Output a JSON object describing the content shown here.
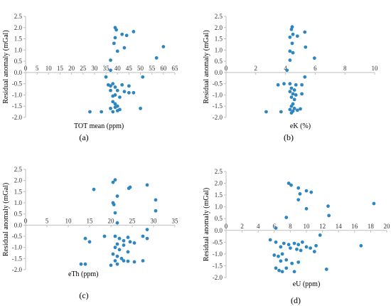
{
  "chart_data": [
    {
      "type": "scatter",
      "panel_label": "(a)",
      "xlabel": "TOT mean (ppm)",
      "ylabel": "Residual anomaly (mGal)",
      "xlim": [
        0,
        65
      ],
      "ylim": [
        -2.0,
        2.5
      ],
      "xticks": [
        0,
        5,
        10,
        15,
        20,
        25,
        30,
        35,
        40,
        45,
        50,
        55,
        60,
        65
      ],
      "yticks": [
        -2.0,
        -1.5,
        -1.0,
        -0.5,
        0.0,
        0.5,
        1.0,
        1.5,
        2.0,
        2.5
      ],
      "point_color": "#2e86c1",
      "points": [
        [
          39,
          2.0
        ],
        [
          39.5,
          1.9
        ],
        [
          47,
          1.82
        ],
        [
          42,
          1.7
        ],
        [
          44,
          1.65
        ],
        [
          39,
          1.55
        ],
        [
          38.5,
          1.3
        ],
        [
          43,
          1.1
        ],
        [
          60,
          1.15
        ],
        [
          40,
          0.95
        ],
        [
          57,
          0.65
        ],
        [
          37,
          0.55
        ],
        [
          37,
          0.1
        ],
        [
          35,
          -0.2
        ],
        [
          51,
          -0.2
        ],
        [
          36,
          -0.55
        ],
        [
          37,
          -0.6
        ],
        [
          38,
          -0.5
        ],
        [
          39,
          -0.65
        ],
        [
          42,
          -0.55
        ],
        [
          45,
          -0.6
        ],
        [
          40,
          -0.8
        ],
        [
          37,
          -0.8
        ],
        [
          43,
          -0.85
        ],
        [
          45,
          -0.9
        ],
        [
          39,
          -1.0
        ],
        [
          38,
          -1.05
        ],
        [
          41,
          -1.1
        ],
        [
          47,
          -0.9
        ],
        [
          38,
          -1.3
        ],
        [
          39,
          -1.4
        ],
        [
          40,
          -1.5
        ],
        [
          37,
          -1.6
        ],
        [
          39,
          -1.55
        ],
        [
          40,
          -1.7
        ],
        [
          38,
          -1.75
        ],
        [
          41,
          -1.65
        ],
        [
          28,
          -1.75
        ],
        [
          33,
          -1.75
        ],
        [
          50,
          -1.6
        ]
      ]
    },
    {
      "type": "scatter",
      "panel_label": "(b)",
      "xlabel": "eK (%)",
      "ylabel": "Residual anomaly (mGal)",
      "xlim": [
        0,
        10
      ],
      "ylim": [
        -2.0,
        2.5
      ],
      "xticks": [
        0,
        2,
        4,
        6,
        8,
        10
      ],
      "yticks": [
        -2.0,
        -1.5,
        -1.0,
        -0.5,
        0.0,
        0.5,
        1.0,
        1.5,
        2.0,
        2.5
      ],
      "point_color": "#2e86c1",
      "points": [
        [
          4.45,
          2.03
        ],
        [
          4.4,
          1.92
        ],
        [
          5.3,
          1.8
        ],
        [
          4.5,
          1.7
        ],
        [
          4.8,
          1.62
        ],
        [
          4.3,
          1.57
        ],
        [
          4.45,
          1.3
        ],
        [
          5.35,
          1.13
        ],
        [
          4.3,
          0.95
        ],
        [
          4.5,
          0.88
        ],
        [
          5.95,
          0.64
        ],
        [
          4.3,
          0.55
        ],
        [
          4.1,
          0.1
        ],
        [
          5.3,
          -0.2
        ],
        [
          3.5,
          -0.55
        ],
        [
          3.9,
          -0.5
        ],
        [
          4.3,
          -0.5
        ],
        [
          4.7,
          -0.55
        ],
        [
          5.1,
          -0.55
        ],
        [
          4.4,
          -0.7
        ],
        [
          4.6,
          -0.78
        ],
        [
          4.3,
          -0.85
        ],
        [
          4.5,
          -0.95
        ],
        [
          5.1,
          -0.95
        ],
        [
          4.7,
          -1.0
        ],
        [
          4.4,
          -1.1
        ],
        [
          4.6,
          -1.2
        ],
        [
          4.5,
          -1.4
        ],
        [
          4.4,
          -1.5
        ],
        [
          4.6,
          -1.6
        ],
        [
          4.3,
          -1.65
        ],
        [
          4.5,
          -1.72
        ],
        [
          4.8,
          -1.68
        ],
        [
          4.4,
          -1.8
        ],
        [
          2.7,
          -1.75
        ],
        [
          3.7,
          -1.75
        ],
        [
          5.0,
          -1.62
        ]
      ]
    },
    {
      "type": "scatter",
      "panel_label": "(c)",
      "xlabel": "eTh (ppm)",
      "ylabel": "Residual anomaly (mGal)",
      "xlim": [
        0,
        35
      ],
      "ylim": [
        -2.0,
        2.5
      ],
      "xticks": [
        0,
        5,
        10,
        15,
        20,
        25,
        30,
        35
      ],
      "yticks": [
        -2.0,
        -1.5,
        -1.0,
        -0.5,
        0.0,
        0.5,
        1.0,
        1.5,
        2.0,
        2.5
      ],
      "point_color": "#2e86c1",
      "points": [
        [
          21,
          2.03
        ],
        [
          20.5,
          1.92
        ],
        [
          28.5,
          1.8
        ],
        [
          24.5,
          1.7
        ],
        [
          24.2,
          1.65
        ],
        [
          16,
          1.6
        ],
        [
          21.5,
          1.3
        ],
        [
          30.5,
          1.13
        ],
        [
          20.5,
          1.0
        ],
        [
          20.7,
          0.92
        ],
        [
          30.5,
          0.64
        ],
        [
          21,
          0.55
        ],
        [
          21.5,
          0.1
        ],
        [
          28.5,
          -0.2
        ],
        [
          14,
          -0.6
        ],
        [
          15,
          -0.75
        ],
        [
          18.5,
          -0.5
        ],
        [
          21,
          -0.5
        ],
        [
          22,
          -0.6
        ],
        [
          24,
          -0.55
        ],
        [
          23,
          -0.7
        ],
        [
          24.5,
          -0.75
        ],
        [
          25.5,
          -0.8
        ],
        [
          27.5,
          -0.5
        ],
        [
          28.5,
          -0.6
        ],
        [
          21.5,
          -0.85
        ],
        [
          23,
          -0.9
        ],
        [
          21,
          -1.0
        ],
        [
          22,
          -1.1
        ],
        [
          24,
          -1.2
        ],
        [
          20.5,
          -1.3
        ],
        [
          21.5,
          -1.4
        ],
        [
          22.5,
          -1.5
        ],
        [
          21,
          -1.6
        ],
        [
          23,
          -1.6
        ],
        [
          24,
          -1.62
        ],
        [
          27.5,
          -1.6
        ],
        [
          20,
          -1.8
        ],
        [
          21.5,
          -1.75
        ],
        [
          13,
          -1.75
        ],
        [
          14,
          -1.75
        ],
        [
          25.5,
          -1.65
        ]
      ]
    },
    {
      "type": "scatter",
      "panel_label": "(d)",
      "xlabel": "eU (ppm)",
      "ylabel": "Residual anomaly (mGal)",
      "xlim": [
        0,
        20
      ],
      "ylim": [
        -2.0,
        2.5
      ],
      "xticks": [
        0,
        2,
        4,
        6,
        8,
        10,
        12,
        14,
        16,
        18,
        20
      ],
      "yticks": [
        -2.0,
        -1.5,
        -1.0,
        -0.5,
        0.0,
        0.5,
        1.0,
        1.5,
        2.0,
        2.5
      ],
      "point_color": "#2e86c1",
      "points": [
        [
          7.8,
          2.0
        ],
        [
          8.1,
          1.92
        ],
        [
          9.0,
          1.8
        ],
        [
          10.0,
          1.68
        ],
        [
          10.6,
          1.62
        ],
        [
          9.2,
          1.55
        ],
        [
          9.0,
          1.3
        ],
        [
          12.7,
          1.03
        ],
        [
          18.4,
          1.14
        ],
        [
          10.0,
          0.92
        ],
        [
          12.8,
          0.63
        ],
        [
          7.5,
          0.55
        ],
        [
          6.2,
          0.1
        ],
        [
          11.7,
          -0.2
        ],
        [
          5.5,
          -0.4
        ],
        [
          6.2,
          -0.5
        ],
        [
          6.8,
          -0.7
        ],
        [
          7.2,
          -0.55
        ],
        [
          7.8,
          -0.6
        ],
        [
          8.0,
          -0.75
        ],
        [
          8.5,
          -0.55
        ],
        [
          8.8,
          -0.8
        ],
        [
          9.0,
          -0.6
        ],
        [
          9.3,
          -0.85
        ],
        [
          9.5,
          -0.5
        ],
        [
          10.0,
          -0.7
        ],
        [
          10.5,
          -0.75
        ],
        [
          11.0,
          -0.9
        ],
        [
          11.2,
          -0.65
        ],
        [
          16.8,
          -0.65
        ],
        [
          6.0,
          -1.05
        ],
        [
          6.5,
          -1.1
        ],
        [
          7.0,
          -1.0
        ],
        [
          6.8,
          -1.3
        ],
        [
          7.5,
          -1.25
        ],
        [
          8.2,
          -1.4
        ],
        [
          9.0,
          -1.35
        ],
        [
          6.2,
          -1.6
        ],
        [
          6.6,
          -1.7
        ],
        [
          7.0,
          -1.75
        ],
        [
          7.5,
          -1.6
        ],
        [
          8.5,
          -1.75
        ],
        [
          12.5,
          -1.65
        ]
      ]
    }
  ]
}
